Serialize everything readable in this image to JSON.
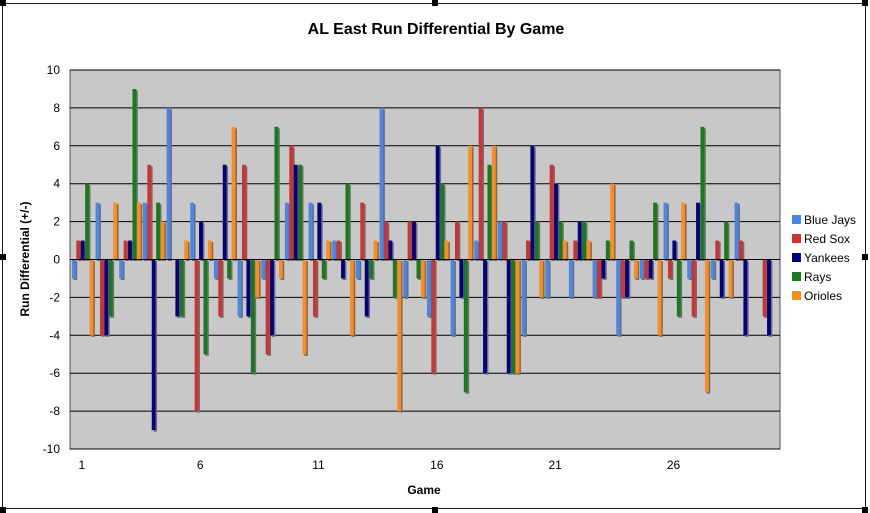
{
  "chart_data": {
    "type": "bar",
    "title": "AL East Run Differential By Game",
    "xlabel": "Game",
    "ylabel": "Run Differential (+/-)",
    "ylim": [
      -10,
      10
    ],
    "yticks": [
      -10,
      -8,
      -6,
      -4,
      -2,
      0,
      2,
      4,
      6,
      8,
      10
    ],
    "xtick_labels": [
      "1",
      "6",
      "11",
      "16",
      "21",
      "26"
    ],
    "xtick_games": [
      1,
      6,
      11,
      16,
      21,
      26
    ],
    "grid": true,
    "legend_position": "right",
    "categories": [
      1,
      2,
      3,
      4,
      5,
      6,
      7,
      8,
      9,
      10,
      11,
      12,
      13,
      14,
      15,
      16,
      17,
      18,
      19,
      20,
      21,
      22,
      23,
      24,
      25,
      26,
      27,
      28,
      29,
      30
    ],
    "series": [
      {
        "name": "Blue Jays",
        "color": "#4a86e8",
        "values": [
          -1,
          3,
          -1,
          3,
          8,
          3,
          -1,
          -3,
          -1,
          3,
          3,
          1,
          -1,
          8,
          -2,
          -3,
          -4,
          1,
          2,
          -4,
          -2,
          -2,
          -2,
          -4,
          -1,
          3,
          -1,
          -1,
          3,
          null
        ]
      },
      {
        "name": "Red Sox",
        "color": "#cc3333",
        "values": [
          1,
          -4,
          1,
          5,
          null,
          -8,
          -3,
          5,
          -5,
          6,
          -3,
          1,
          3,
          2,
          2,
          -6,
          2,
          8,
          2,
          1,
          5,
          1,
          -2,
          -2,
          -1,
          -1,
          -3,
          1,
          1,
          -3
        ]
      },
      {
        "name": "Yankees",
        "color": "#000080",
        "values": [
          1,
          -4,
          1,
          -9,
          -3,
          2,
          5,
          -3,
          -4,
          5,
          3,
          -1,
          -3,
          1,
          2,
          6,
          -2,
          -6,
          -6,
          6,
          4,
          2,
          -1,
          -2,
          -1,
          1,
          3,
          -2,
          -4,
          -4
        ]
      },
      {
        "name": "Rays",
        "color": "#1a7a1a",
        "values": [
          4,
          -3,
          9,
          3,
          -3,
          -5,
          -1,
          -6,
          7,
          5,
          -1,
          4,
          -1,
          -2,
          -1,
          4,
          -7,
          5,
          -6,
          2,
          2,
          2,
          1,
          1,
          3,
          -3,
          7,
          2,
          null,
          null
        ]
      },
      {
        "name": "Orioles",
        "color": "#ff8c1a",
        "values": [
          -4,
          3,
          3,
          2,
          1,
          1,
          7,
          -2,
          -1,
          -5,
          1,
          -4,
          1,
          -8,
          -2,
          1,
          6,
          6,
          -6,
          -2,
          1,
          1,
          4,
          -1,
          -4,
          3,
          -7,
          -2,
          null,
          null
        ]
      }
    ]
  }
}
